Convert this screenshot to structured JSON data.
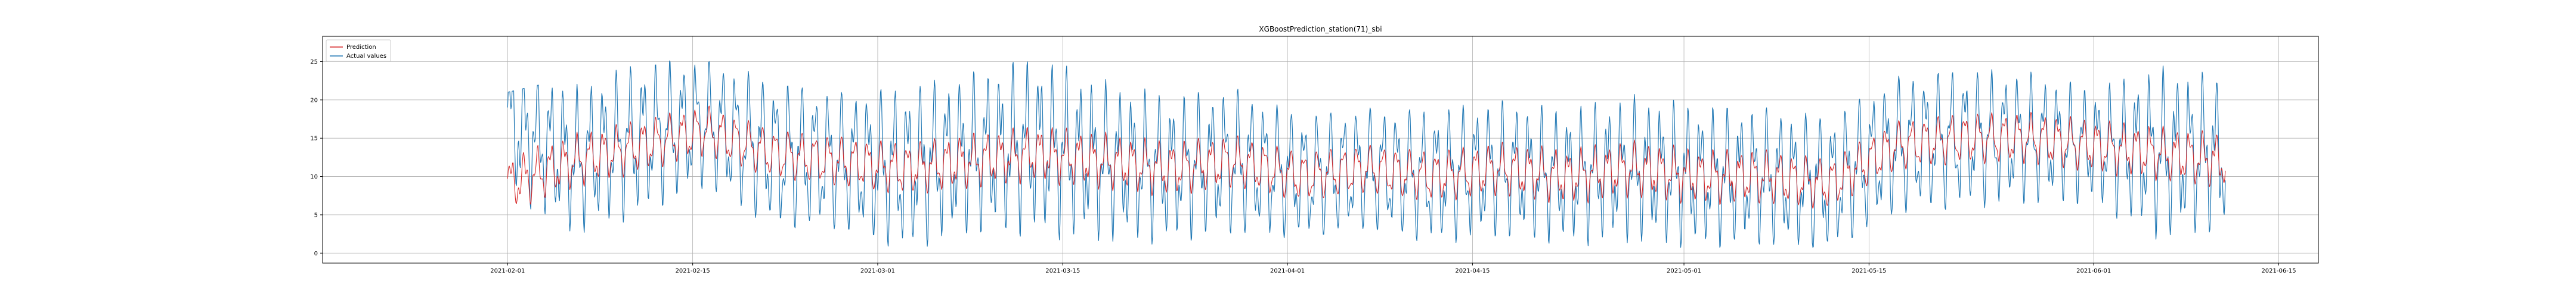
{
  "chart_data": {
    "type": "line",
    "title": "XGBoostPrediction_station(71)_sbi",
    "xlabel": "",
    "ylabel": "",
    "xlim": [
      "2021-01-18",
      "2021-06-18"
    ],
    "ylim": [
      -1.3,
      28.3
    ],
    "grid": true,
    "legend_position": "top-left",
    "x_ticks": [
      "2021-02-01",
      "2021-02-15",
      "2021-03-01",
      "2021-03-15",
      "2021-04-01",
      "2021-04-15",
      "2021-05-01",
      "2021-05-15",
      "2021-06-01",
      "2021-06-15"
    ],
    "y_ticks": [
      0,
      5,
      10,
      15,
      20,
      25
    ],
    "series": [
      {
        "name": "Prediction",
        "color": "#d62728",
        "x": [
          "2021-02-01",
          "2021-02-06",
          "2021-02-11",
          "2021-02-16",
          "2021-02-21",
          "2021-02-26",
          "2021-03-03",
          "2021-03-08",
          "2021-03-13",
          "2021-03-18",
          "2021-03-23",
          "2021-03-28",
          "2021-04-02",
          "2021-04-07",
          "2021-04-12",
          "2021-04-17",
          "2021-04-22",
          "2021-04-27",
          "2021-05-02",
          "2021-05-07",
          "2021-05-12",
          "2021-05-17",
          "2021-05-22",
          "2021-05-27",
          "2021-06-01",
          "2021-06-06",
          "2021-06-11"
        ],
        "values": [
          9,
          12,
          14,
          16,
          13,
          12,
          11,
          12,
          13,
          12,
          11,
          12,
          10,
          11,
          10,
          11,
          10,
          11,
          10,
          10,
          9,
          14,
          15,
          15,
          14,
          13,
          12
        ]
      },
      {
        "name": "Actual values",
        "color": "#1f77b4",
        "x": [
          "2021-02-01",
          "2021-02-06",
          "2021-02-11",
          "2021-02-16",
          "2021-02-21",
          "2021-02-26",
          "2021-03-03",
          "2021-03-08",
          "2021-03-13",
          "2021-03-18",
          "2021-03-23",
          "2021-03-28",
          "2021-04-02",
          "2021-04-07",
          "2021-04-12",
          "2021-04-17",
          "2021-04-22",
          "2021-04-27",
          "2021-05-02",
          "2021-05-07",
          "2021-05-12",
          "2021-05-17",
          "2021-05-22",
          "2021-05-27",
          "2021-06-01",
          "2021-06-06",
          "2021-06-11"
        ],
        "values": [
          17,
          12,
          15,
          17,
          13,
          12,
          11,
          13,
          14,
          12,
          11,
          12,
          10,
          11,
          10,
          11,
          10,
          11,
          10,
          10,
          9,
          14,
          15,
          15,
          14,
          13,
          13
        ],
        "min_values": [
          0,
          1,
          3,
          4,
          0,
          1,
          0,
          1,
          1,
          1,
          1,
          0,
          1,
          1,
          0,
          1,
          1,
          0,
          0,
          0,
          1,
          1,
          2,
          4,
          4,
          0,
          1
        ],
        "max_values": [
          21,
          23,
          27,
          25,
          25,
          24,
          26,
          25,
          27,
          24,
          23,
          23,
          22,
          22,
          22,
          22,
          21,
          21,
          21,
          21,
          23,
          24,
          25,
          25,
          22,
          26,
          24
        ]
      }
    ]
  }
}
